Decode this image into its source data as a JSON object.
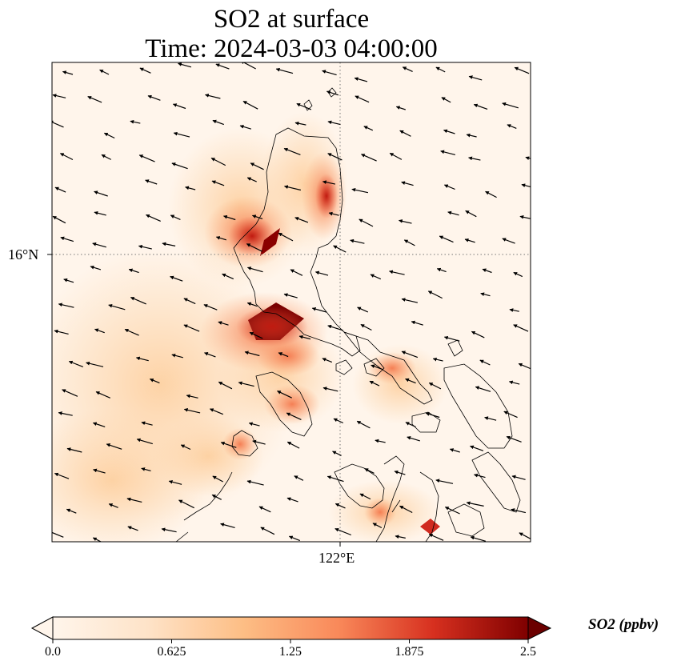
{
  "title": {
    "line1": "SO2 at surface",
    "line2": "Time: 2024-03-03 04:00:00"
  },
  "axes": {
    "lat_tick": "16°N",
    "lon_tick": "122°E",
    "gridlines": "dotted"
  },
  "colorbar": {
    "label": "SO2 (ppbv)",
    "ticks": [
      "0.0",
      "0.625",
      "1.25",
      "1.875",
      "2.5"
    ],
    "min": 0.0,
    "max": 2.5,
    "extend": "both",
    "colormap": [
      "#fff5eb",
      "#fdd4a8",
      "#fb9f6a",
      "#e9573a",
      "#b10000",
      "#6b0000"
    ]
  },
  "colors": {
    "background": "#fff5eb",
    "coastline": "#000000",
    "wind_arrow": "#000000"
  }
}
